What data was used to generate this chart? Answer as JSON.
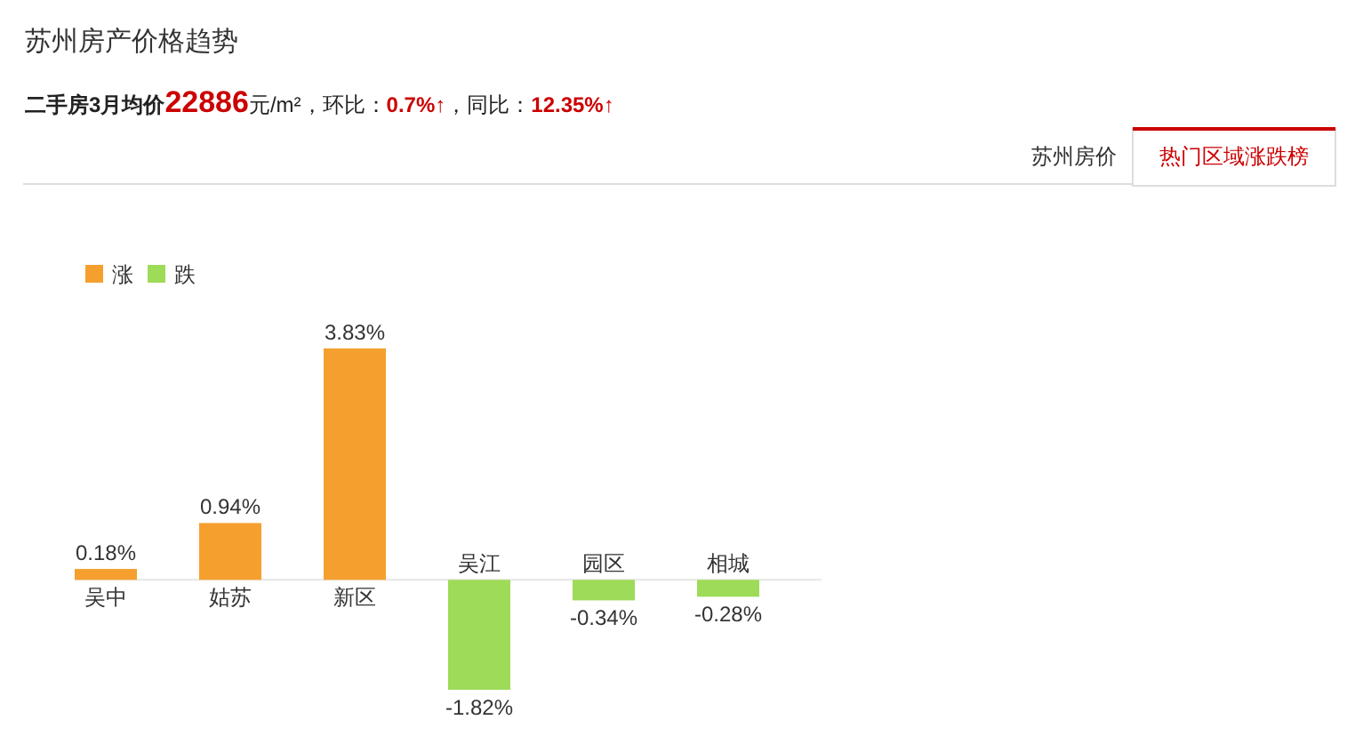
{
  "chart_data": {
    "type": "bar",
    "title": "苏州房产价格趋势",
    "subtitle": "二手房3月均价22886元/m²，环比：0.7%↑，同比：12.35%↑",
    "categories": [
      "吴中",
      "姑苏",
      "新区",
      "吴江",
      "园区",
      "相城"
    ],
    "series": [
      {
        "name": "涨",
        "color": "#f5a02e",
        "values": [
          0.18,
          0.94,
          3.83,
          null,
          null,
          null
        ],
        "value_labels": [
          "0.18%",
          "0.94%",
          "3.83%",
          null,
          null,
          null
        ]
      },
      {
        "name": "跌",
        "color": "#9edb59",
        "values": [
          null,
          null,
          null,
          -1.82,
          -0.34,
          -0.28
        ],
        "value_labels": [
          null,
          null,
          null,
          "-1.82%",
          "-0.34%",
          "-0.28%"
        ]
      }
    ],
    "stacked": true,
    "legend": "top left",
    "annotations": [
      "苏州房价",
      "热门区域涨跌榜"
    ]
  }
}
